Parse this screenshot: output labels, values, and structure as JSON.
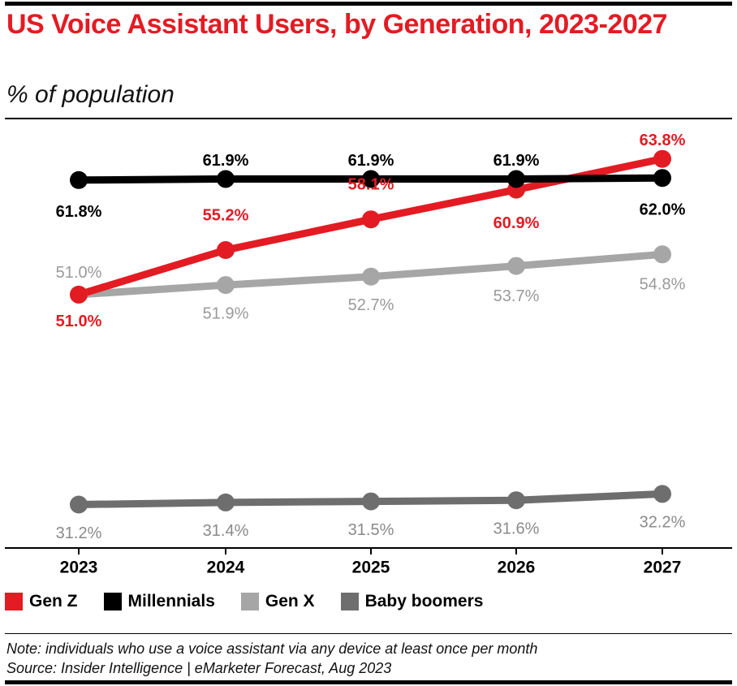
{
  "header": {
    "title": "US Voice Assistant Users, by Generation, 2023-2027",
    "subtitle": "% of population"
  },
  "footer": {
    "note": "Note: individuals who use a voice assistant via any device at least once per month",
    "source": "Source: Insider Intelligence | eMarketer Forecast, Aug 2023"
  },
  "chart_data": {
    "type": "line",
    "title": "US Voice Assistant Users, by Generation, 2023-2027",
    "subtitle": "% of population",
    "xlabel": "",
    "ylabel": "% of population",
    "categories": [
      "2023",
      "2024",
      "2025",
      "2026",
      "2027"
    ],
    "ylim": [
      29,
      65
    ],
    "grid": false,
    "legend_position": "bottom-left",
    "series": [
      {
        "name": "Gen Z",
        "color": "#e31b23",
        "values": [
          51.0,
          55.2,
          58.1,
          60.9,
          63.8
        ],
        "labels": [
          "51.0%",
          "55.2%",
          "58.1%",
          "60.9%",
          "63.8%"
        ]
      },
      {
        "name": "Millennials",
        "color": "#000000",
        "values": [
          61.8,
          61.9,
          61.9,
          61.9,
          62.0
        ],
        "labels": [
          "61.8%",
          "61.9%",
          "61.9%",
          "61.9%",
          "62.0%"
        ]
      },
      {
        "name": "Gen X",
        "color": "#a6a6a6",
        "values": [
          51.0,
          51.9,
          52.7,
          53.7,
          54.8
        ],
        "labels": [
          "51.0%",
          "51.9%",
          "52.7%",
          "53.7%",
          "54.8%"
        ]
      },
      {
        "name": "Baby boomers",
        "color": "#6e6e6e",
        "values": [
          31.2,
          31.4,
          31.5,
          31.6,
          32.2
        ],
        "labels": [
          "31.2%",
          "31.4%",
          "31.5%",
          "31.6%",
          "32.2%"
        ]
      }
    ]
  }
}
